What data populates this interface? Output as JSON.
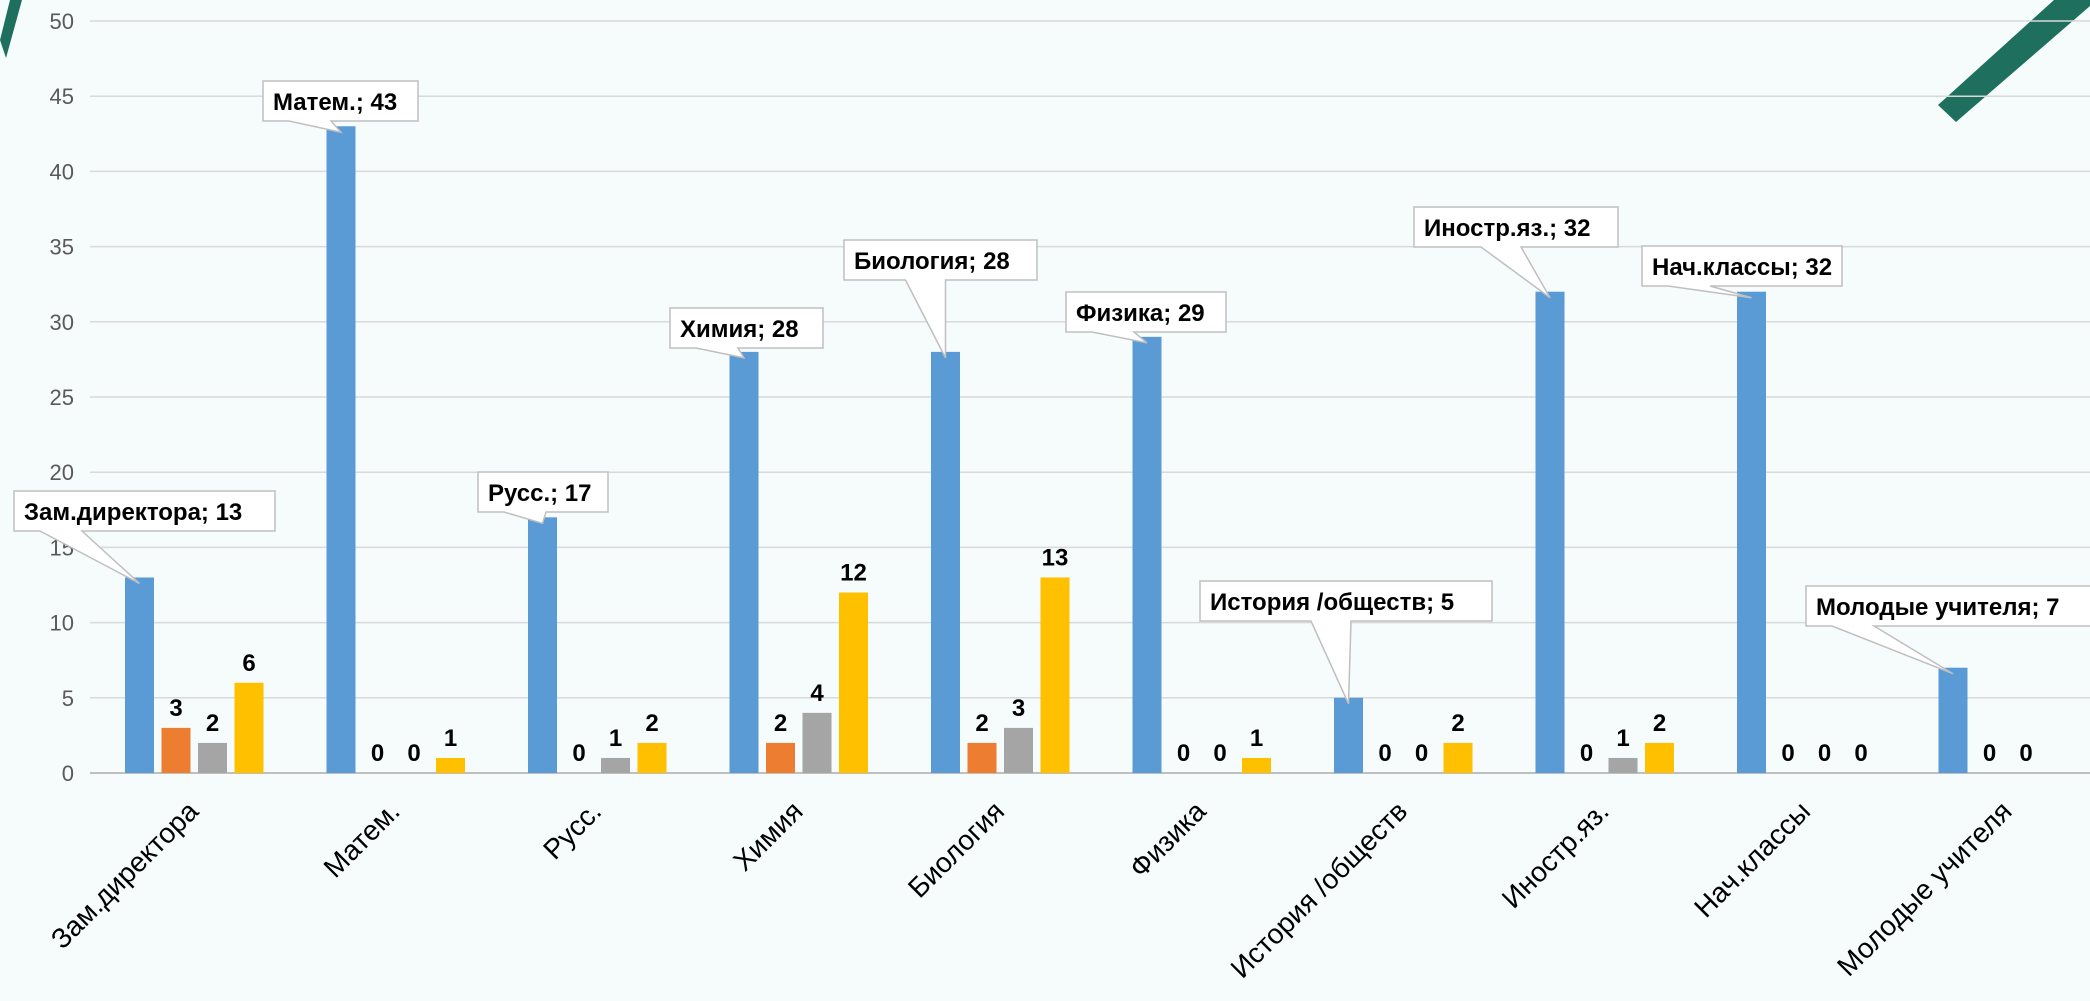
{
  "colors": {
    "background": "#f6fcfc",
    "grid": "#d9d9d9",
    "decor": "#1f6f5f"
  },
  "chart_data": {
    "type": "bar",
    "title": "",
    "xlabel": "",
    "ylabel": "",
    "ylim": [
      0,
      50
    ],
    "yticks": [
      0,
      5,
      10,
      15,
      20,
      25,
      30,
      35,
      40,
      45,
      50
    ],
    "grid": true,
    "categories": [
      "Зам.директора",
      "Матем.",
      "Русс.",
      "Химия",
      "Биология",
      "Физика",
      "История /обществ",
      "Иностр.яз.",
      "Нач.классы",
      "Молодые учителя"
    ],
    "series": [
      {
        "color": "#5b9bd5",
        "values": [
          13,
          43,
          17,
          28,
          28,
          29,
          5,
          32,
          32,
          7
        ]
      },
      {
        "color": "#ed7d31",
        "values": [
          3,
          0,
          0,
          2,
          2,
          0,
          0,
          0,
          0,
          0
        ]
      },
      {
        "color": "#a5a5a5",
        "values": [
          2,
          0,
          1,
          4,
          3,
          0,
          0,
          1,
          0,
          0
        ]
      },
      {
        "color": "#ffc000",
        "values": [
          6,
          1,
          2,
          12,
          13,
          1,
          2,
          2,
          0,
          null
        ]
      }
    ],
    "callouts": [
      "Зам.директора; 13",
      "Матем.; 43",
      "Русс.; 17",
      "Химия; 28",
      "Биология; 28",
      "Физика; 29",
      "История /обществ; 5",
      "Иностр.яз.; 32",
      "Нач.классы; 32",
      "Молодые учителя; 7"
    ]
  }
}
